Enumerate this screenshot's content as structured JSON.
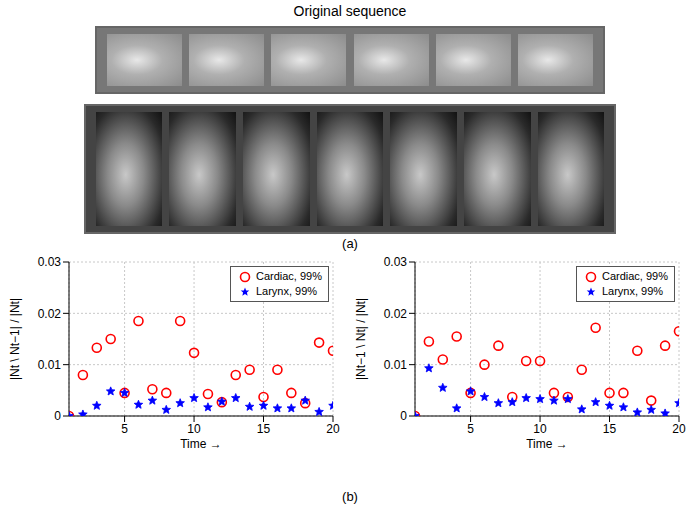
{
  "figure": {
    "title": "Original sequence",
    "panel_labels": [
      "(a)",
      "(b)"
    ],
    "image_strips": [
      {
        "frames": 6
      },
      {
        "frames": 7
      }
    ]
  },
  "chart_data": [
    {
      "type": "scatter",
      "x_label": "Time →",
      "y_label": "|Nt \\ Nt−1| / |Nt|",
      "x": [
        1,
        2,
        3,
        4,
        5,
        6,
        7,
        8,
        9,
        10,
        11,
        12,
        13,
        14,
        15,
        16,
        17,
        18,
        19,
        20
      ],
      "xlim": [
        1,
        20
      ],
      "xticks": [
        5,
        10,
        15,
        20
      ],
      "ylim": [
        0,
        0.03
      ],
      "yticks": [
        0,
        0.01,
        0.02,
        0.03
      ],
      "grid": true,
      "legend": "top-right",
      "series": [
        {
          "name": "Cardiac, 99%",
          "color": "#ff0000",
          "marker": "circle",
          "values": [
            0,
            0.008,
            0.0133,
            0.015,
            0.0045,
            0.0185,
            0.0052,
            0.0045,
            0.0185,
            0.0123,
            0.0043,
            0.0027,
            0.008,
            0.009,
            0.0037,
            0.009,
            0.0045,
            0.0025,
            0.0143,
            0.0127
          ]
        },
        {
          "name": "Larynx, 99%",
          "color": "#0000ff",
          "marker": "star",
          "values": [
            0,
            0.0003,
            0.002,
            0.0048,
            0.0045,
            0.0022,
            0.003,
            0.0012,
            0.0025,
            0.0035,
            0.0017,
            0.0028,
            0.0035,
            0.0018,
            0.002,
            0.0015,
            0.0015,
            0.003,
            0.0008,
            0.002
          ]
        }
      ]
    },
    {
      "type": "scatter",
      "x_label": "Time →",
      "y_label": "|Nt−1 \\ Nt| / |Nt|",
      "x": [
        1,
        2,
        3,
        4,
        5,
        6,
        7,
        8,
        9,
        10,
        11,
        12,
        13,
        14,
        15,
        16,
        17,
        18,
        19,
        20
      ],
      "xlim": [
        1,
        20
      ],
      "xticks": [
        5,
        10,
        15,
        20
      ],
      "ylim": [
        0,
        0.03
      ],
      "yticks": [
        0,
        0.01,
        0.02,
        0.03
      ],
      "grid": true,
      "legend": "top-right",
      "series": [
        {
          "name": "Cardiac, 99%",
          "color": "#ff0000",
          "marker": "circle",
          "values": [
            0,
            0.0145,
            0.011,
            0.0155,
            0.0045,
            0.01,
            0.0137,
            0.0037,
            0.0107,
            0.0107,
            0.0045,
            0.0037,
            0.009,
            0.0172,
            0.0045,
            0.0045,
            0.0127,
            0.003,
            0.0137,
            0.0165
          ]
        },
        {
          "name": "Larynx, 99%",
          "color": "#0000ff",
          "marker": "star",
          "values": [
            0,
            0.0093,
            0.0055,
            0.0015,
            0.0048,
            0.0037,
            0.0025,
            0.0027,
            0.0035,
            0.0033,
            0.003,
            0.0033,
            0.0013,
            0.0027,
            0.002,
            0.0017,
            0.0007,
            0.0012,
            0.0005,
            0.0025
          ]
        }
      ]
    }
  ]
}
